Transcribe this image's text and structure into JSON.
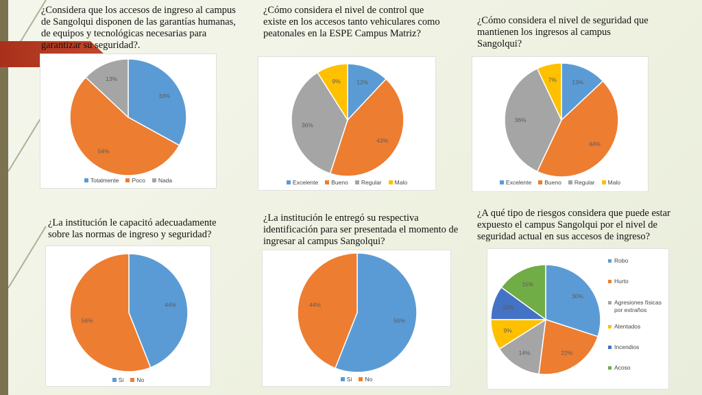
{
  "colors": {
    "blue": "#5b9bd5",
    "orange": "#ed7d31",
    "gray": "#a5a5a5",
    "yellow": "#ffc000",
    "darkblue": "#4472c4",
    "green": "#70ad47",
    "label": "#5a5a5a"
  },
  "chart_data": [
    {
      "type": "pie",
      "question": "¿Considera que los accesos de ingreso al campus de Sangolqui disponen de las garantías humanas, de equipos y tecnológicas necesarias para garantizar su seguridad?.",
      "categories": [
        "Totalmente",
        "Poco",
        "Nada"
      ],
      "values": [
        33,
        54,
        13
      ],
      "labels": [
        "33%",
        "54%",
        "13%"
      ],
      "legend": "bottom"
    },
    {
      "type": "pie",
      "question": "¿Cómo considera el nivel de control que existe en los accesos tanto vehiculares como peatonales en la ESPE Campus Matriz?",
      "categories": [
        "Excelente",
        "Bueno",
        "Regular",
        "Malo"
      ],
      "values": [
        12,
        43,
        36,
        9
      ],
      "labels": [
        "12%",
        "43%",
        "36%",
        "9%"
      ],
      "legend": "bottom"
    },
    {
      "type": "pie",
      "question": "¿Cómo considera el nivel de seguridad que mantienen los ingresos al campus Sangolqui?",
      "categories": [
        "Excelente",
        "Bueno",
        "Regular",
        "Malo"
      ],
      "values": [
        13,
        44,
        36,
        7
      ],
      "labels": [
        "13%",
        "44%",
        "36%",
        "7%"
      ],
      "legend": "bottom"
    },
    {
      "type": "pie",
      "question": "¿La institución le capacitó adecuadamente sobre las normas de ingreso y seguridad?",
      "categories": [
        "Si",
        "No"
      ],
      "values": [
        44,
        56
      ],
      "labels": [
        "44%",
        "56%"
      ],
      "legend": "bottom"
    },
    {
      "type": "pie",
      "question": "¿La institución le entregó su respectiva identificación para ser presentada el momento de ingresar al campus Sangolqui?",
      "categories": [
        "Si",
        "No"
      ],
      "values": [
        56,
        44
      ],
      "labels": [
        "56%",
        "44%"
      ],
      "legend": "bottom"
    },
    {
      "type": "pie",
      "question": "¿A qué tipo de riesgos considera que puede estar expuesto el campus Sangolqui por el nivel de seguridad actual en sus accesos de ingreso?",
      "categories": [
        "Robo",
        "Hurto",
        "Agresiones físicas por extraños",
        "Atentados",
        "Incendios",
        "Acoso"
      ],
      "values": [
        30,
        22,
        14,
        9,
        10,
        15
      ],
      "labels": [
        "30%",
        "22%",
        "14%",
        "9%",
        "10%",
        "15%"
      ],
      "legend": "right"
    }
  ]
}
